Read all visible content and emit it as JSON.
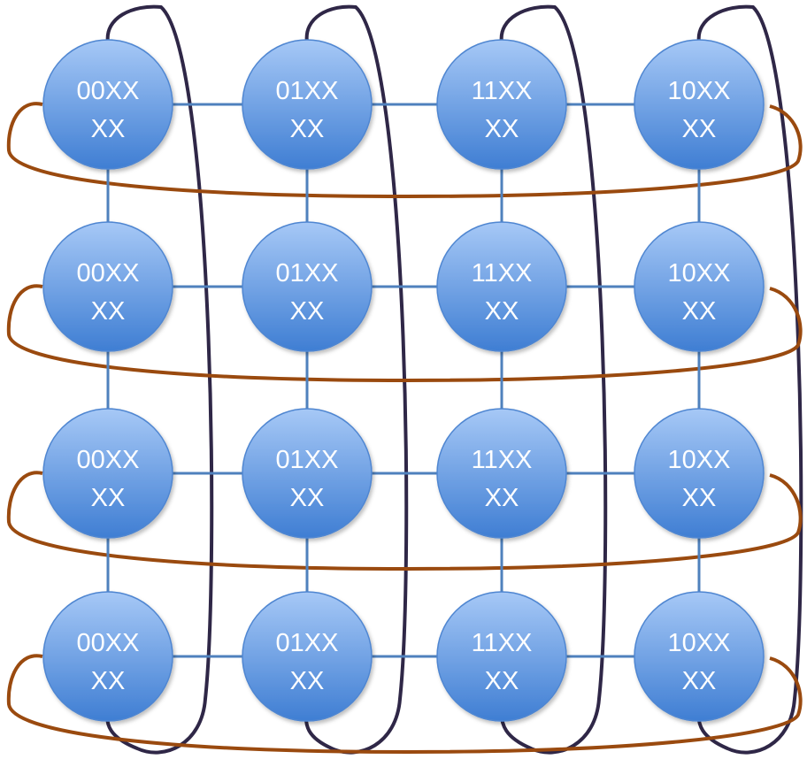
{
  "colors": {
    "node_fill_top": "#a6c8f6",
    "node_fill_bottom": "#3f7ed3",
    "node_stroke": "#4f86d1",
    "mesh_link": "#4f81bd",
    "row_wrap_link": "#9a4a0f",
    "column_wrap_link": "#2f2747",
    "label_text": "#ffffff"
  },
  "nodes": [
    {
      "id": "r0c0",
      "line1": "00XX",
      "line2": "XX"
    },
    {
      "id": "r0c1",
      "line1": "01XX",
      "line2": "XX"
    },
    {
      "id": "r0c2",
      "line1": "11XX",
      "line2": "XX"
    },
    {
      "id": "r0c3",
      "line1": "10XX",
      "line2": "XX"
    },
    {
      "id": "r1c0",
      "line1": "00XX",
      "line2": "XX"
    },
    {
      "id": "r1c1",
      "line1": "01XX",
      "line2": "XX"
    },
    {
      "id": "r1c2",
      "line1": "11XX",
      "line2": "XX"
    },
    {
      "id": "r1c3",
      "line1": "10XX",
      "line2": "XX"
    },
    {
      "id": "r2c0",
      "line1": "00XX",
      "line2": "XX"
    },
    {
      "id": "r2c1",
      "line1": "01XX",
      "line2": "XX"
    },
    {
      "id": "r2c2",
      "line1": "11XX",
      "line2": "XX"
    },
    {
      "id": "r2c3",
      "line1": "10XX",
      "line2": "XX"
    },
    {
      "id": "r3c0",
      "line1": "00XX",
      "line2": "XX"
    },
    {
      "id": "r3c1",
      "line1": "01XX",
      "line2": "XX"
    },
    {
      "id": "r3c2",
      "line1": "11XX",
      "line2": "XX"
    },
    {
      "id": "r3c3",
      "line1": "10XX",
      "line2": "XX"
    }
  ]
}
